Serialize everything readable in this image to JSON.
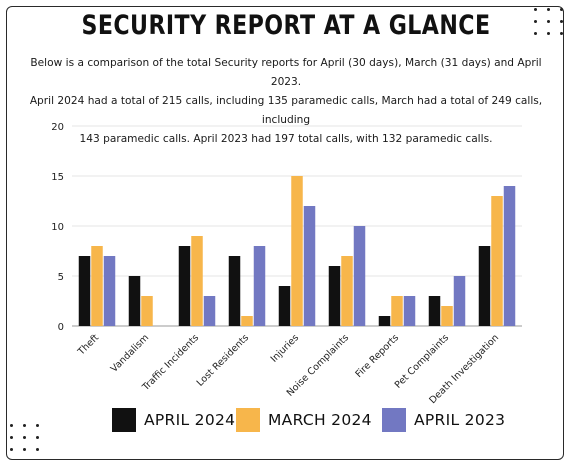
{
  "header": {
    "title": "SECURITY REPORT AT A GLANCE",
    "subtitle_lines": [
      "Below is a comparison of the total Security reports for April (30 days),  March (31 days) and April 2023.",
      "April 2024 had a total of 215 calls, including 135 paramedic calls, March had a total of 249 calls, including",
      "143 paramedic calls. April 2023 had 197 total calls, with 132 paramedic calls."
    ]
  },
  "colors": {
    "april_2024": "#111111",
    "march_2024": "#f7b64b",
    "april_2023": "#7278c2",
    "grid": "#dddddd",
    "text": "#222222"
  },
  "chart_data": {
    "type": "bar",
    "title": "",
    "xlabel": "",
    "ylabel": "",
    "ylim": [
      0,
      20
    ],
    "yticks": [
      0,
      5,
      10,
      15,
      20
    ],
    "grid": true,
    "legend_position": "bottom",
    "categories": [
      "Theft",
      "Vandalism",
      "Traffic Incidents",
      "Lost Residents",
      "Injuries",
      "Noise Complaints",
      "Fire Reports",
      "Pet Complaints",
      "Death Investigation"
    ],
    "series": [
      {
        "name": "APRIL 2024",
        "color": "#111111",
        "values": [
          7,
          5,
          8,
          7,
          4,
          6,
          1,
          3,
          8
        ]
      },
      {
        "name": "MARCH 2024",
        "color": "#f7b64b",
        "values": [
          8,
          3,
          9,
          1,
          15,
          7,
          3,
          2,
          13
        ]
      },
      {
        "name": "APRIL 2023",
        "color": "#7278c2",
        "values": [
          7,
          0,
          3,
          8,
          12,
          10,
          3,
          5,
          14
        ]
      }
    ]
  }
}
